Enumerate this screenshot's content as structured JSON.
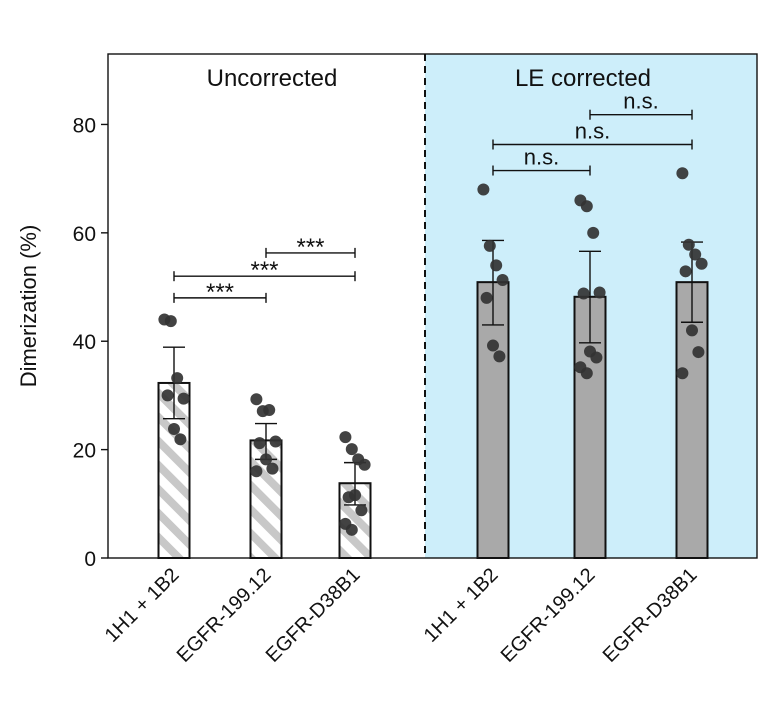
{
  "chart_data": {
    "type": "bar",
    "ylabel": "Dimerization (%)",
    "ylim": [
      0,
      93
    ],
    "yticks": [
      0,
      20,
      40,
      60,
      80
    ],
    "groups": [
      {
        "name": "Uncorrected",
        "label": "Uncorrected",
        "pattern": "hatched"
      },
      {
        "name": "LE corrected",
        "label": "LE corrected",
        "pattern": "solid"
      }
    ],
    "bars": [
      {
        "group": 0,
        "label": "1H1 + 1B2",
        "value": 32.3,
        "err_low": 25.7,
        "err_high": 38.9,
        "points": [
          44.0,
          43.7,
          33.2,
          29.4,
          30.0,
          23.8,
          21.9
        ]
      },
      {
        "group": 0,
        "label": "EGFR-199.12",
        "value": 21.7,
        "err_low": 18.2,
        "err_high": 24.8,
        "points": [
          29.3,
          27.1,
          27.3,
          21.5,
          21.2,
          18.2,
          16.5,
          16.0
        ]
      },
      {
        "group": 0,
        "label": "EGFR-D38B1",
        "value": 13.8,
        "err_low": 9.8,
        "err_high": 17.6,
        "points": [
          22.3,
          20.1,
          18.2,
          17.2,
          11.2,
          11.6,
          8.8,
          6.3,
          5.2
        ]
      },
      {
        "group": 1,
        "label": "1H1 + 1B2",
        "value": 50.9,
        "err_low": 43.0,
        "err_high": 58.6,
        "points": [
          68.0,
          57.6,
          54.0,
          51.3,
          48.0,
          39.2,
          37.2
        ]
      },
      {
        "group": 1,
        "label": "EGFR-199.12",
        "value": 48.2,
        "err_low": 39.7,
        "err_high": 56.6,
        "points": [
          66.0,
          64.9,
          60.0,
          49.0,
          48.8,
          38.1,
          37.0,
          35.2,
          34.1
        ]
      },
      {
        "group": 1,
        "label": "EGFR-D38B1",
        "value": 50.9,
        "err_low": 43.5,
        "err_high": 58.3,
        "points": [
          71.0,
          57.8,
          56.0,
          54.3,
          52.9,
          42.0,
          38.0,
          34.1
        ]
      }
    ],
    "comparisons": [
      {
        "from": 0,
        "to": 1,
        "y": 48,
        "label": "***"
      },
      {
        "from": 0,
        "to": 2,
        "y": 52,
        "label": "***"
      },
      {
        "from": 1,
        "to": 2,
        "y": 56.3,
        "label": "***"
      },
      {
        "from": 3,
        "to": 4,
        "y": 71.5,
        "label": "n.s."
      },
      {
        "from": 3,
        "to": 5,
        "y": 76.3,
        "label": "n.s."
      },
      {
        "from": 4,
        "to": 5,
        "y": 81.8,
        "label": "n.s."
      }
    ],
    "colors": {
      "bar_gray": "#a9a9a9",
      "hatch_gray": "#c8c8c8",
      "point": "#333333",
      "corrected_bg": "#cdeefa"
    }
  }
}
